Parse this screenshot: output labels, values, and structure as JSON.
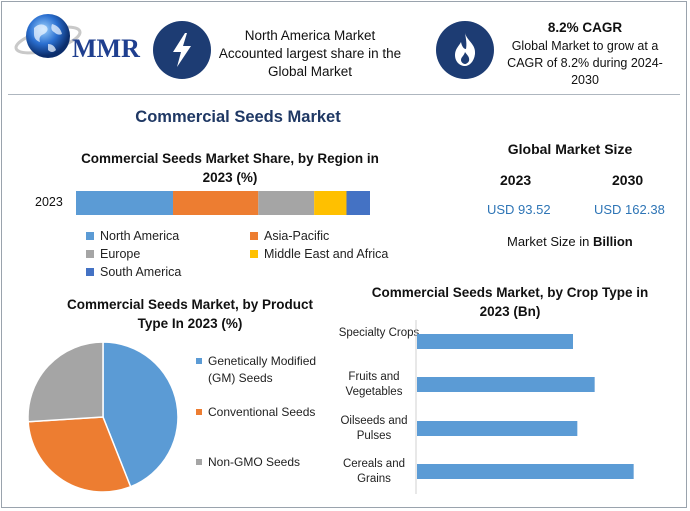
{
  "header": {
    "brand": "MMR",
    "box1_text": "North America Market Accounted largest share in the Global Market",
    "box2_title": "8.2% CAGR",
    "box2_text": "Global Market to grow at a CAGR of 8.2% during 2024-2030"
  },
  "main_title": "Commercial Seeds Market",
  "market_size": {
    "title": "Global Market Size",
    "year1": "2023",
    "year2": "2030",
    "value1": "USD 93.52",
    "value2": "USD 162.38",
    "note_prefix": "Market Size in ",
    "note_bold": "Billion"
  },
  "colors": {
    "blue": "#5b9bd5",
    "orange": "#ed7d31",
    "gray": "#a5a5a5",
    "yellow": "#ffc000",
    "darkblue": "#4472c4",
    "icon_bg": "#1d3c73"
  },
  "icons": [
    "globe-icon",
    "lightning-icon",
    "flame-icon"
  ],
  "chart_data": [
    {
      "type": "bar",
      "orientation": "horizontal-stacked",
      "title": "Commercial Seeds Market Share, by Region in 2023 (%)",
      "categories": [
        "2023"
      ],
      "series": [
        {
          "name": "North America",
          "values": [
            33
          ],
          "color": "#5b9bd5"
        },
        {
          "name": "Asia-Pacific",
          "values": [
            29
          ],
          "color": "#ed7d31"
        },
        {
          "name": "Europe",
          "values": [
            19
          ],
          "color": "#a5a5a5"
        },
        {
          "name": "Middle East and Africa",
          "values": [
            11
          ],
          "color": "#ffc000"
        },
        {
          "name": "South America",
          "values": [
            8
          ],
          "color": "#4472c4"
        }
      ],
      "legend": "bottom"
    },
    {
      "type": "pie",
      "title": "Commercial Seeds Market, by Product Type In 2023 (%)",
      "labels": [
        "Genetically Modified (GM) Seeds",
        "Conventional Seeds",
        "Non-GMO Seeds"
      ],
      "values": [
        44,
        30,
        26
      ],
      "colors": [
        "#5b9bd5",
        "#ed7d31",
        "#a5a5a5"
      ],
      "legend": "right"
    },
    {
      "type": "bar",
      "orientation": "horizontal",
      "title": "Commercial Seeds Market, by Crop Type in 2023 (Bn)",
      "categories": [
        "Specialty Crops",
        "Fruits and Vegetables",
        "Oilseeds and Pulses",
        "Cereals and Grains"
      ],
      "values": [
        18,
        20.5,
        18.5,
        25
      ],
      "xlim": [
        0,
        30
      ],
      "color": "#5b9bd5"
    }
  ]
}
